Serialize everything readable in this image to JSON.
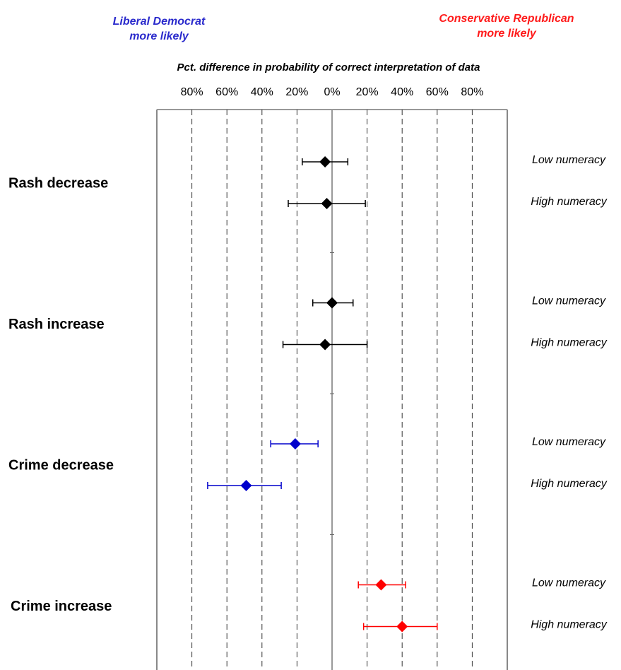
{
  "chart_data": {
    "type": "dot-errorbar",
    "left_note": [
      "Liberal Democrat",
      "more likely"
    ],
    "left_note_color": "#2a2acc",
    "right_note": [
      "Conservative Republican",
      "more likely"
    ],
    "right_note_color": "#ff1a1a",
    "x_label": "Pct. difference in probability of correct interpretation of data",
    "xlim": [
      -100,
      100
    ],
    "xticks": [
      {
        "value": -80,
        "label": "80%"
      },
      {
        "value": -60,
        "label": "60%"
      },
      {
        "value": -40,
        "label": "40%"
      },
      {
        "value": -20,
        "label": "20%"
      },
      {
        "value": 0,
        "label": "0%"
      },
      {
        "value": 20,
        "label": "20%"
      },
      {
        "value": 40,
        "label": "40%"
      },
      {
        "value": 60,
        "label": "60%"
      },
      {
        "value": 80,
        "label": "80%"
      }
    ],
    "grid": true,
    "categories": [
      "Rash decrease",
      "Rash increase",
      "Crime decrease",
      "Crime increase"
    ],
    "category_colors": [
      "#000000",
      "#000000",
      "#0000cc",
      "#ff0000"
    ],
    "series": [
      {
        "name": "Low numeracy",
        "values": [
          -4,
          0,
          -21,
          28
        ],
        "ci_low": [
          -17,
          -11,
          -35,
          15
        ],
        "ci_high": [
          9,
          12,
          -8,
          42
        ]
      },
      {
        "name": "High numeracy",
        "values": [
          -3,
          -4,
          -49,
          40
        ],
        "ci_low": [
          -25,
          -28,
          -71,
          18
        ],
        "ci_high": [
          19,
          20,
          -29,
          60
        ]
      }
    ]
  }
}
